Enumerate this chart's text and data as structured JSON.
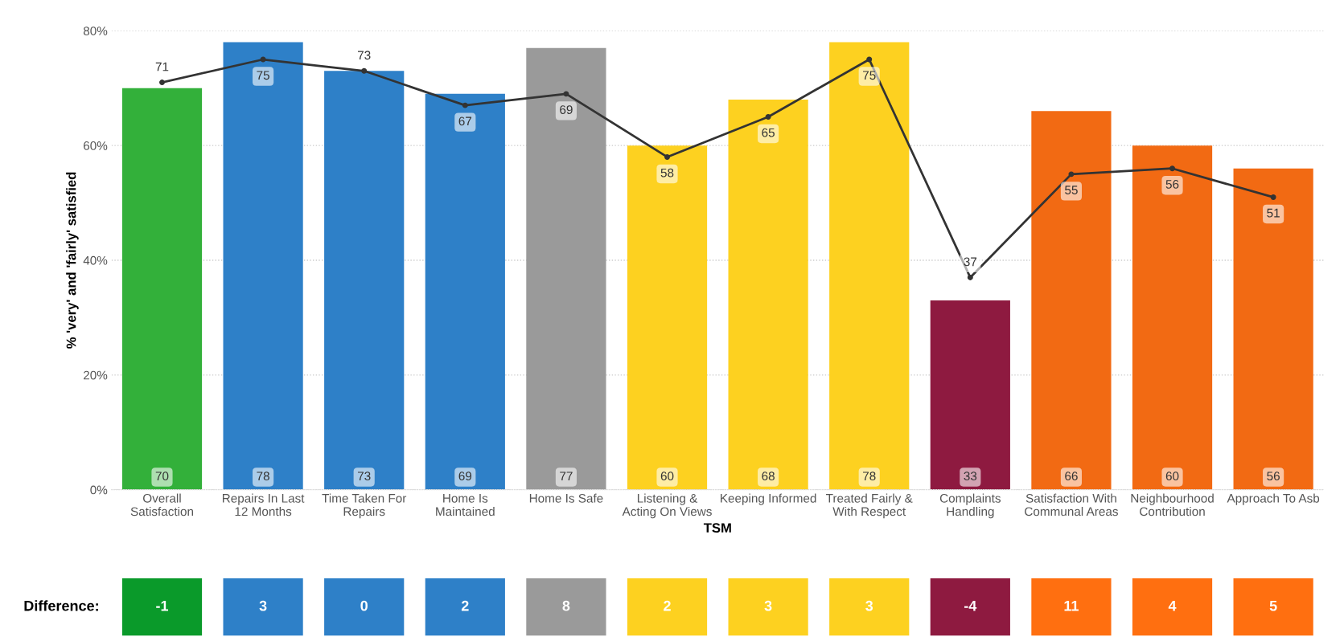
{
  "chart_data": [
    {
      "type": "bar",
      "xlabel": "TSM",
      "ylabel": "% 'very' and 'fairly' satisfied",
      "categories": [
        "Overall Satisfaction",
        "Repairs In Last 12 Months",
        "Time Taken For Repairs",
        "Home Is Maintained",
        "Home Is Safe",
        "Listening & Acting On Views",
        "Keeping Informed",
        "Treated Fairly & With Respect",
        "Complaints Handling",
        "Satisfaction With Communal Areas",
        "Neighbourhood Contribution",
        "Approach To Asb"
      ],
      "ylim": [
        0,
        80
      ],
      "yticks": [
        {
          "value": 0,
          "label": "0%"
        },
        {
          "value": 20,
          "label": "20%"
        },
        {
          "value": 40,
          "label": "40%"
        },
        {
          "value": 60,
          "label": "60%"
        },
        {
          "value": 80,
          "label": "80%"
        }
      ],
      "grid": "y",
      "legend": false,
      "data_labels": true,
      "series": [
        {
          "type": "bar",
          "colors": [
            "#33b03a",
            "#2e80c8",
            "#2e80c8",
            "#2e80c8",
            "#9a9a9a",
            "#fdd120",
            "#fdd120",
            "#fdd120",
            "#8e1a40",
            "#f26a13",
            "#f26a13",
            "#f26a13"
          ],
          "values": [
            70,
            78,
            73,
            69,
            77,
            60,
            68,
            78,
            33,
            66,
            60,
            56
          ]
        },
        {
          "type": "line",
          "color": "#333333",
          "marker": "circle",
          "values": [
            71,
            75,
            73,
            67,
            69,
            58,
            65,
            75,
            37,
            55,
            56,
            51
          ]
        }
      ]
    },
    {
      "type": "other",
      "title": "Difference:",
      "data_labels": true,
      "categories": [
        null,
        null,
        null,
        null,
        null,
        null,
        null,
        null,
        null,
        null,
        null,
        null
      ],
      "values": [
        -1,
        3,
        0,
        2,
        8,
        2,
        3,
        3,
        -4,
        11,
        4,
        5
      ],
      "colors": [
        "#0a9a2a",
        "#2e80c8",
        "#2e80c8",
        "#2e80c8",
        "#9a9a9a",
        "#fdd120",
        "#fdd120",
        "#fdd120",
        "#8e1a40",
        "#ff6f10",
        "#ff6f10",
        "#ff6f10"
      ]
    }
  ]
}
